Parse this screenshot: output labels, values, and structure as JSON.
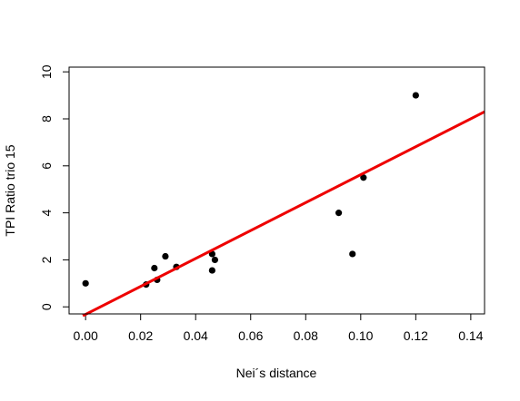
{
  "chart_data": {
    "type": "scatter",
    "xlabel": "Nei´s distance",
    "ylabel": "TPI Ratio trio 15",
    "xlim": [
      -0.006,
      0.145
    ],
    "ylim": [
      -0.3,
      10.2
    ],
    "xticks": [
      0.0,
      0.02,
      0.04,
      0.06,
      0.08,
      0.1,
      0.12,
      0.14
    ],
    "xtick_labels": [
      "0.00",
      "0.02",
      "0.04",
      "0.06",
      "0.08",
      "0.10",
      "0.12",
      "0.14"
    ],
    "yticks": [
      0,
      2,
      4,
      6,
      8,
      10
    ],
    "ytick_labels": [
      "0",
      "2",
      "4",
      "6",
      "8",
      "10"
    ],
    "grid": false,
    "points": [
      {
        "x": 0.0,
        "y": 1.0
      },
      {
        "x": 0.022,
        "y": 0.95
      },
      {
        "x": 0.025,
        "y": 1.65
      },
      {
        "x": 0.026,
        "y": 1.15
      },
      {
        "x": 0.029,
        "y": 2.15
      },
      {
        "x": 0.033,
        "y": 1.7
      },
      {
        "x": 0.046,
        "y": 2.25
      },
      {
        "x": 0.046,
        "y": 1.55
      },
      {
        "x": 0.047,
        "y": 2.0
      },
      {
        "x": 0.092,
        "y": 4.0
      },
      {
        "x": 0.097,
        "y": 2.25
      },
      {
        "x": 0.101,
        "y": 5.5
      },
      {
        "x": 0.12,
        "y": 9.0
      }
    ],
    "fit_line": {
      "x": [
        -0.001,
        0.145
      ],
      "y": [
        -0.38,
        8.3
      ],
      "color": "#ee0000"
    },
    "point_color": "#000000"
  }
}
